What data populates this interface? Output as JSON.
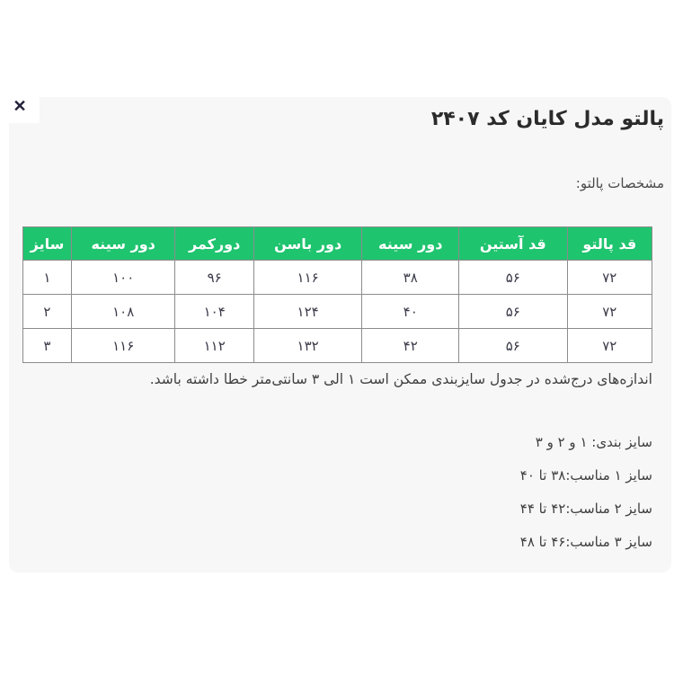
{
  "header": {
    "title": "پالتو مدل کایان کد ۲۴۰۷",
    "close_glyph": "✕"
  },
  "section": {
    "subtitle": "مشخصات پالتو:"
  },
  "size_table": {
    "columns": [
      "قد پالتو",
      "قد آستین",
      "دور سینه",
      "دور باسن",
      "دورکمر",
      "دور سینه",
      "سایز"
    ],
    "rows": [
      [
        "۷۲",
        "۵۶",
        "۳۸",
        "۱۱۶",
        "۹۶",
        "۱۰۰",
        "۱"
      ],
      [
        "۷۲",
        "۵۶",
        "۴۰",
        "۱۲۴",
        "۱۰۴",
        "۱۰۸",
        "۲"
      ],
      [
        "۷۲",
        "۵۶",
        "۴۲",
        "۱۳۲",
        "۱۱۲",
        "۱۱۶",
        "۳"
      ]
    ]
  },
  "note": "اندازه‌های درج‌شده در جدول سایزبندی ممکن است ۱ الی ۳ سانتی‌متر خطا داشته باشد.",
  "size_info": [
    "سایز بندی: ۱ و ۲ و ۳",
    "سایز ۱ مناسب:۳۸ تا ۴۰",
    "سایز ۲ مناسب:۴۲ تا ۴۴",
    "سایز ۳ مناسب:۴۶ تا ۴۸"
  ],
  "colors": {
    "table_header_bg": "#1fc46f",
    "table_header_text": "#ffffff",
    "card_bg": "#f7f7f8",
    "border": "#8c8c8c",
    "body_text": "#3f3f3f",
    "title_text": "#2b2b2b"
  }
}
